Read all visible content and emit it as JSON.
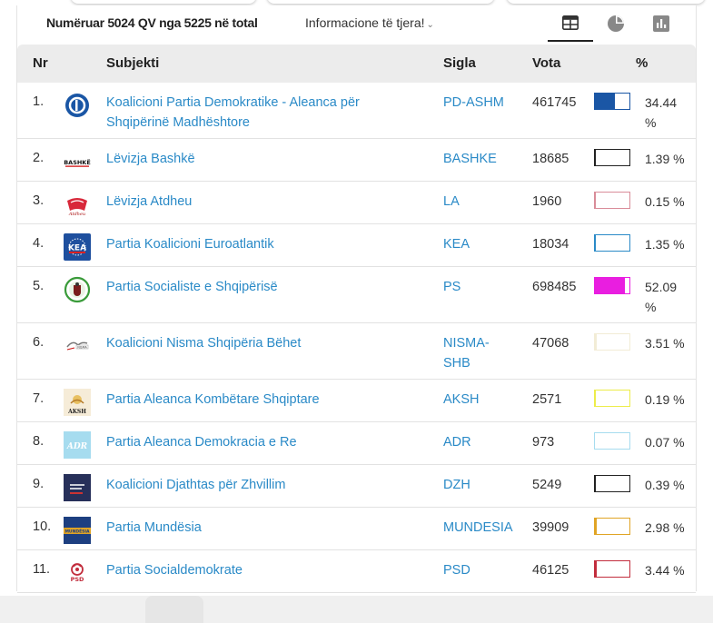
{
  "header": {
    "count_text": "Numëruar 5024 QV nga 5225 në total",
    "info_link": "Informacione të tjera!",
    "views": [
      {
        "name": "table-icon",
        "active": true
      },
      {
        "name": "pie-chart-icon",
        "active": false
      },
      {
        "name": "bar-chart-icon",
        "active": false
      }
    ]
  },
  "table": {
    "columns": {
      "nr": "Nr",
      "subjekti": "Subjekti",
      "sigla": "Sigla",
      "vota": "Vota",
      "pct": "%"
    },
    "rows": [
      {
        "nr": "1.",
        "name": "Koalicioni Partia Demokratike - Aleanca për Shqipërinë Madhështore",
        "sigla": "PD-ASHM",
        "vota": "461745",
        "pct": "34.44 %",
        "share": 34.44,
        "color": "#1a56a5",
        "logo": "pd-logo-icon"
      },
      {
        "nr": "2.",
        "name": "Lëvizja Bashkë",
        "sigla": "BASHKE",
        "vota": "18685",
        "pct": "1.39 %",
        "share": 1.39,
        "color": "#222222",
        "logo": "bashke-logo-icon"
      },
      {
        "nr": "3.",
        "name": "Lëvizja Atdheu",
        "sigla": "LA",
        "vota": "1960",
        "pct": "0.15 %",
        "share": 0.15,
        "color": "#d98c99",
        "logo": "atdheu-logo-icon"
      },
      {
        "nr": "4.",
        "name": "Partia Koalicioni Euroatlantik",
        "sigla": "KEA",
        "vota": "18034",
        "pct": "1.35 %",
        "share": 1.35,
        "color": "#2a8ac7",
        "logo": "kea-logo-icon"
      },
      {
        "nr": "5.",
        "name": "Partia Socialiste e Shqipërisë",
        "sigla": "PS",
        "vota": "698485",
        "pct": "52.09 %",
        "share": 52.09,
        "color": "#e91ee0",
        "logo": "ps-logo-icon"
      },
      {
        "nr": "6.",
        "name": "Koalicioni Nisma Shqipëria Bëhet",
        "sigla": "NISMA-SHB",
        "vota": "47068",
        "pct": "3.51 %",
        "share": 3.51,
        "color": "#f2ecd6",
        "logo": "nisma-logo-icon"
      },
      {
        "nr": "7.",
        "name": "Partia Aleanca Kombëtare Shqiptare",
        "sigla": "AKSH",
        "vota": "2571",
        "pct": "0.19 %",
        "share": 0.19,
        "color": "#ecec4a",
        "logo": "aksh-logo-icon"
      },
      {
        "nr": "8.",
        "name": "Partia Aleanca Demokracia e Re",
        "sigla": "ADR",
        "vota": "973",
        "pct": "0.07 %",
        "share": 0.07,
        "color": "#a6dcef",
        "logo": "adr-logo-icon"
      },
      {
        "nr": "9.",
        "name": "Koalicioni Djathtas për Zhvillim",
        "sigla": "DZH",
        "vota": "5249",
        "pct": "0.39 %",
        "share": 0.39,
        "color": "#222222",
        "logo": "dzh-logo-icon"
      },
      {
        "nr": "10.",
        "name": "Partia Mundësia",
        "sigla": "MUNDESIA",
        "vota": "39909",
        "pct": "2.98 %",
        "share": 2.98,
        "color": "#e0a425",
        "logo": "mundesia-logo-icon"
      },
      {
        "nr": "11.",
        "name": "Partia Socialdemokrate",
        "sigla": "PSD",
        "vota": "46125",
        "pct": "3.44 %",
        "share": 3.44,
        "color": "#c22d3d",
        "logo": "psd-logo-icon"
      }
    ]
  }
}
